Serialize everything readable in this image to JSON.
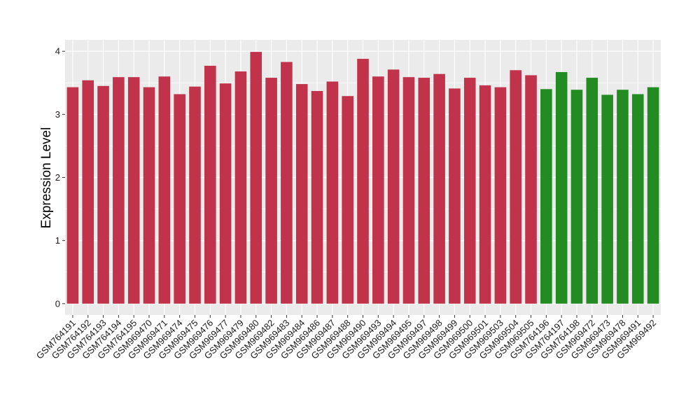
{
  "chart_data": {
    "type": "bar",
    "title": "",
    "xlabel": "",
    "ylabel": "Expression Level",
    "ylim": [
      -0.18,
      4.18
    ],
    "yticks": [
      0,
      1,
      2,
      3,
      4
    ],
    "grid": true,
    "legend": "none",
    "categories": [
      "GSM764191",
      "GSM764192",
      "GSM764193",
      "GSM764194",
      "GSM764195",
      "GSM969470",
      "GSM969471",
      "GSM969474",
      "GSM969475",
      "GSM969476",
      "GSM969477",
      "GSM969479",
      "GSM969480",
      "GSM969482",
      "GSM969483",
      "GSM969484",
      "GSM969486",
      "GSM969487",
      "GSM969488",
      "GSM969490",
      "GSM969493",
      "GSM969494",
      "GSM969495",
      "GSM969497",
      "GSM969498",
      "GSM969499",
      "GSM969500",
      "GSM969501",
      "GSM969503",
      "GSM969504",
      "GSM969505",
      "GSM764196",
      "GSM764197",
      "GSM764198",
      "GSM969472",
      "GSM969473",
      "GSM969478",
      "GSM969491",
      "GSM969492"
    ],
    "values": [
      3.43,
      3.54,
      3.45,
      3.59,
      3.59,
      3.43,
      3.6,
      3.32,
      3.44,
      3.77,
      3.49,
      3.68,
      3.99,
      3.58,
      3.83,
      3.48,
      3.37,
      3.52,
      3.29,
      3.88,
      3.6,
      3.71,
      3.59,
      3.58,
      3.64,
      3.41,
      3.58,
      3.46,
      3.43,
      3.7,
      3.62,
      3.4,
      3.67,
      3.39,
      3.58,
      3.31,
      3.39,
      3.32,
      3.43
    ],
    "bar_colors": [
      "#c0334a",
      "#c0334a",
      "#c0334a",
      "#c0334a",
      "#c0334a",
      "#c0334a",
      "#c0334a",
      "#c0334a",
      "#c0334a",
      "#c0334a",
      "#c0334a",
      "#c0334a",
      "#c0334a",
      "#c0334a",
      "#c0334a",
      "#c0334a",
      "#c0334a",
      "#c0334a",
      "#c0334a",
      "#c0334a",
      "#c0334a",
      "#c0334a",
      "#c0334a",
      "#c0334a",
      "#c0334a",
      "#c0334a",
      "#c0334a",
      "#c0334a",
      "#c0334a",
      "#c0334a",
      "#c0334a",
      "#228b22",
      "#228b22",
      "#228b22",
      "#228b22",
      "#228b22",
      "#228b22",
      "#228b22",
      "#228b22"
    ],
    "panel_color": "#ebebeb",
    "gridline_color": "#ffffff"
  }
}
